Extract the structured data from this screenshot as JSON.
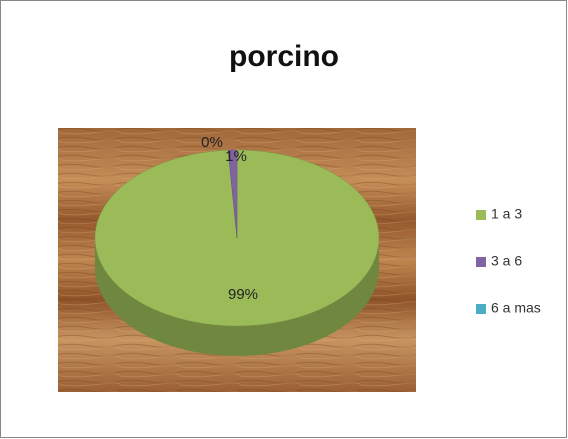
{
  "chart_data": {
    "type": "pie",
    "title": "porcino",
    "categories": [
      "1 a 3",
      "3 a 6",
      "6 a mas"
    ],
    "values": [
      99,
      1,
      0
    ],
    "value_labels": [
      "99%",
      "1%",
      "0%"
    ],
    "colors": [
      "#9bbb59",
      "#8064a2",
      "#4bacc6"
    ],
    "legend": "right"
  }
}
